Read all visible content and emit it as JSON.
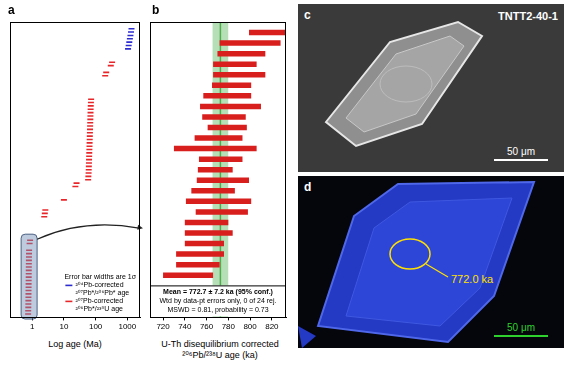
{
  "chart_data": [
    {
      "panel": "a",
      "type": "scatter",
      "x_label": "Log age (Ma)",
      "log": "x",
      "xlim": [
        0.2,
        2500
      ],
      "xticks": [
        1,
        10,
        100,
        1000
      ],
      "ylim": [
        0,
        88
      ],
      "tick_labels": "x",
      "grid": false,
      "legend": "bottom-right",
      "annotation": "Error bar widths are 1σ",
      "series": [
        {
          "name": "²⁰⁴Pb-corrected ²⁰⁷Pb*/²⁰⁶Pb* age",
          "color": "#2b2bd0",
          "marker": "dash",
          "x": [
            1050,
            1100,
            1150,
            1200,
            1250,
            1300,
            1350
          ],
          "y": [
            80,
            81,
            82,
            83,
            84,
            85,
            86
          ]
        },
        {
          "name": "²⁰⁷Pb-corrected ²⁰⁶Pb*/²³⁸U age",
          "color": "#e8262a",
          "marker": "dash",
          "x": [
            0.745,
            0.75,
            0.755,
            0.758,
            0.76,
            0.762,
            0.765,
            0.767,
            0.77,
            0.772,
            0.774,
            0.776,
            0.778,
            0.78,
            0.782,
            0.785,
            0.788,
            0.79,
            0.795,
            0.8,
            0.83,
            0.86,
            2.4,
            2.5,
            2.6,
            10,
            23,
            25,
            58,
            59,
            60,
            60.5,
            61,
            61.5,
            62,
            62.5,
            63,
            63.5,
            64,
            64.5,
            65,
            65.5,
            66,
            66.5,
            67,
            67.5,
            68,
            68.5,
            69,
            69.5,
            70,
            71,
            72,
            200,
            215,
            300,
            330
          ],
          "y": [
            1,
            2,
            3,
            4,
            5,
            6,
            7,
            8,
            9,
            10,
            11,
            12,
            13,
            14,
            15,
            16,
            17,
            18,
            19,
            20,
            22,
            23,
            30,
            31,
            32,
            35,
            39,
            40,
            41,
            42,
            43,
            44,
            45,
            46,
            47,
            48,
            49,
            50,
            51,
            52,
            53,
            54,
            55,
            56,
            57,
            58,
            59,
            60,
            61,
            62,
            63,
            64,
            65,
            72,
            73,
            75,
            76
          ]
        }
      ]
    },
    {
      "panel": "b",
      "type": "errorbar",
      "orientation": "horizontal",
      "x_label": "U-Th disequilibrium corrected ²⁰⁶Pb/²³⁸U age (ka)",
      "xlim": [
        708,
        833
      ],
      "xticks": [
        720,
        740,
        760,
        780,
        800,
        820
      ],
      "ylim": [
        -3,
        25
      ],
      "tick_labels": "x",
      "grid": false,
      "color": "#d91e1e",
      "values": [
        816,
        800,
        792,
        786,
        790,
        783,
        779,
        782,
        776,
        779,
        771,
        768,
        773,
        768,
        775,
        766,
        771,
        774,
        760,
        762,
        758,
        754,
        752,
        743
      ],
      "errors": [
        17,
        28,
        22,
        20,
        24,
        18,
        22,
        28,
        20,
        18,
        22,
        38,
        20,
        16,
        24,
        20,
        30,
        24,
        20,
        22,
        18,
        22,
        20,
        23
      ],
      "mean": 772.7,
      "mean_error": 7.2,
      "mean_color": "#4caf4c",
      "annotations": [
        "Mean = 772.7 ± 7.2 ka (95% conf.)",
        "Wtd by data-pt errors only, 0 of 24 rej.",
        "MSWD = 0.81, probability = 0.73"
      ]
    }
  ],
  "images": [
    {
      "panel": "c",
      "label": "TNTT2-40-1",
      "scale_bar": "50 μm"
    },
    {
      "panel": "d",
      "scale_bar": "50 μm",
      "spot_label": "772.0 ka"
    }
  ]
}
